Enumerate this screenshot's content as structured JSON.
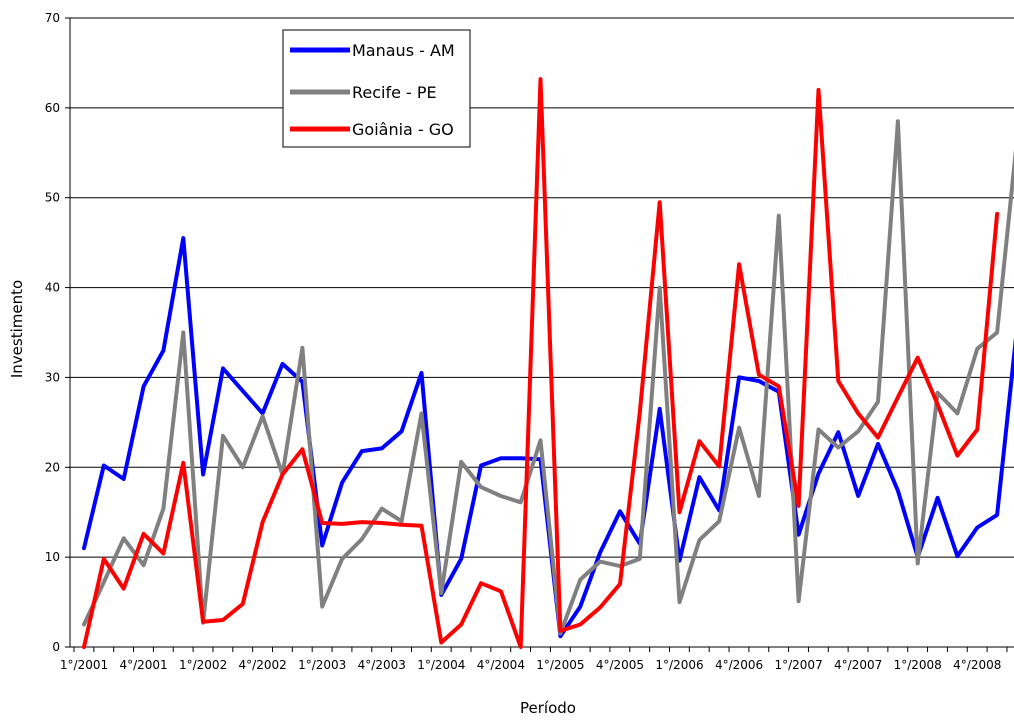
{
  "chart_data": {
    "type": "line",
    "xlabel": "Período",
    "ylabel": "Investimento",
    "ylim": [
      0,
      70
    ],
    "yticks": [
      0,
      10,
      20,
      30,
      40,
      50,
      60,
      70
    ],
    "grid": true,
    "legend_position": "top-left",
    "x_tick_labels": [
      {
        "index": 0,
        "label": "1°/2001"
      },
      {
        "index": 3,
        "label": "4°/2001"
      },
      {
        "index": 6,
        "label": "1°/2002"
      },
      {
        "index": 9,
        "label": "4°/2002"
      },
      {
        "index": 12,
        "label": "1°/2003"
      },
      {
        "index": 15,
        "label": "4°/2003"
      },
      {
        "index": 18,
        "label": "1°/2004"
      },
      {
        "index": 21,
        "label": "4°/2004"
      },
      {
        "index": 24,
        "label": "1°/2005"
      },
      {
        "index": 27,
        "label": "4°/2005"
      },
      {
        "index": 30,
        "label": "1°/2006"
      },
      {
        "index": 33,
        "label": "4°/2006"
      },
      {
        "index": 36,
        "label": "1°/2007"
      },
      {
        "index": 39,
        "label": "4°/2007"
      },
      {
        "index": 42,
        "label": "1°/2008"
      },
      {
        "index": 45,
        "label": "4°/2008"
      }
    ],
    "n_points": 48,
    "series": [
      {
        "name": "Manaus - AM",
        "color": "#0000ff",
        "values": [
          11.0,
          20.2,
          18.7,
          29.0,
          33.0,
          45.5,
          19.2,
          31.0,
          28.5,
          26.0,
          31.5,
          29.5,
          11.3,
          18.3,
          21.8,
          22.1,
          24.0,
          30.5,
          5.8,
          9.8,
          20.2,
          21.0,
          21.0,
          20.9,
          1.2,
          4.5,
          10.5,
          15.1,
          11.5,
          26.5,
          9.6,
          18.9,
          15.2,
          30.0,
          29.6,
          28.4,
          12.5,
          19.3,
          23.9,
          16.8,
          22.6,
          17.4,
          10.0,
          16.6,
          10.1,
          13.3,
          14.7,
          35.5
        ]
      },
      {
        "name": "Recife - PE",
        "color": "#808080",
        "values": [
          2.5,
          7.2,
          12.1,
          9.1,
          15.4,
          35.0,
          2.7,
          23.5,
          20.0,
          25.7,
          19.2,
          33.3,
          4.5,
          9.8,
          12.0,
          15.4,
          14.0,
          26.0,
          6.0,
          20.6,
          17.8,
          16.8,
          16.1,
          23.0,
          1.5,
          7.5,
          9.5,
          9.0,
          9.8,
          40.0,
          5.0,
          11.9,
          14.0,
          24.4,
          16.8,
          48.0,
          5.1,
          24.2,
          22.2,
          24.0,
          27.3,
          58.5,
          9.3,
          28.3,
          26.0,
          33.2,
          35.0,
          56.5
        ]
      },
      {
        "name": "Goiânia - GO",
        "color": "#ff0000",
        "values": [
          0.0,
          9.8,
          6.5,
          12.6,
          10.4,
          20.5,
          2.8,
          3.0,
          4.8,
          13.9,
          19.2,
          22.0,
          13.8,
          13.7,
          13.9,
          13.8,
          13.6,
          13.5,
          0.5,
          2.5,
          7.1,
          6.2,
          0.0,
          63.2,
          1.8,
          2.5,
          4.4,
          7.0,
          26.1,
          49.5,
          15.0,
          22.9,
          20.1,
          42.6,
          30.3,
          29.0,
          15.7,
          62.0,
          29.6,
          26.0,
          23.3,
          27.8,
          32.2,
          27.0,
          21.3,
          24.2,
          48.2,
          null
        ]
      }
    ]
  }
}
